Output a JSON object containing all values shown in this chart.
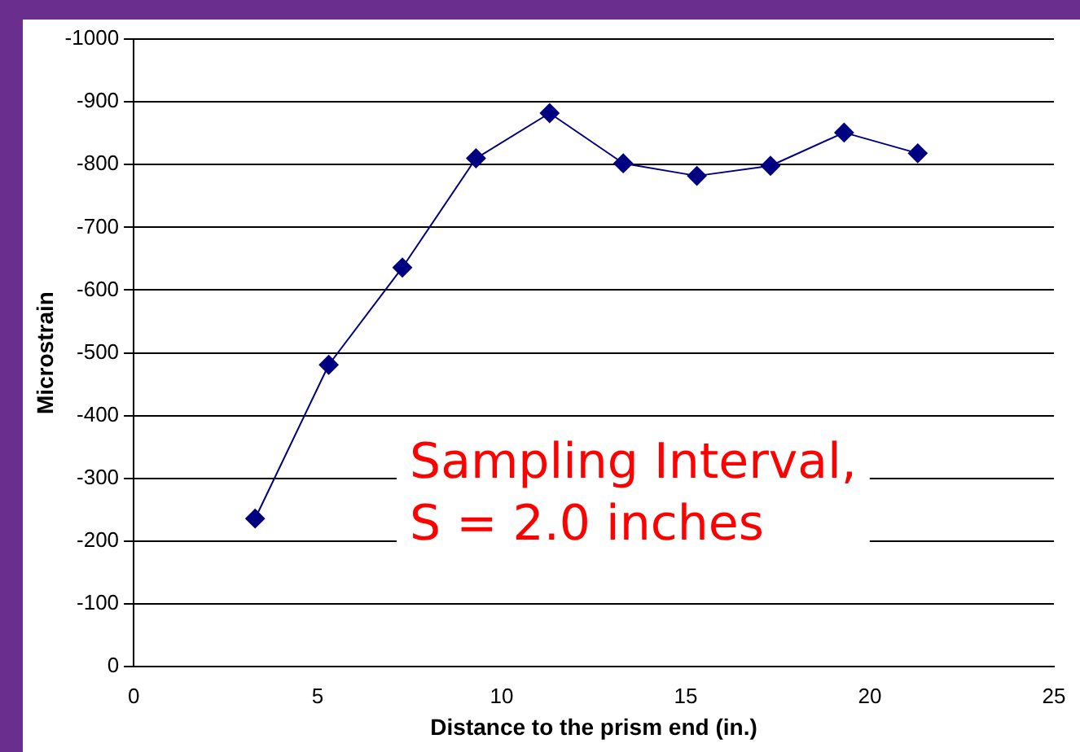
{
  "chart_data": {
    "type": "line",
    "xlabel": "Distance to the prism end (in.)",
    "ylabel": "Microstrain",
    "x": [
      3.3,
      5.3,
      7.3,
      9.3,
      11.3,
      13.3,
      15.3,
      17.3,
      19.3,
      21.3
    ],
    "series": [
      {
        "color": "#000080",
        "values": [
          -236,
          -481,
          -636,
          -810,
          -882,
          -802,
          -782,
          -798,
          -851,
          -818
        ]
      }
    ],
    "xlim": [
      0,
      25
    ],
    "xticks": [
      0,
      5,
      10,
      15,
      20,
      25
    ],
    "ylim": [
      0,
      -1000
    ],
    "yticks": [
      -1000,
      -900,
      -800,
      -700,
      -600,
      -500,
      -400,
      -300,
      -200,
      -100,
      0
    ],
    "grid": "y",
    "legend": false,
    "marker": "diamond",
    "line_style": "solid",
    "annotations": [
      "Sampling Interval,\nS = 2.0 inches"
    ]
  }
}
